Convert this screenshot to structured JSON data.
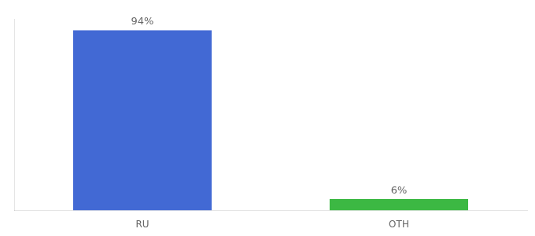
{
  "chart_data": {
    "type": "bar",
    "categories": [
      "RU",
      "OTH"
    ],
    "values": [
      94,
      6
    ],
    "value_labels": [
      "94%",
      "6%"
    ],
    "colors": [
      "#4269d4",
      "#3cb843"
    ],
    "ylim": [
      0,
      100
    ],
    "grid": false,
    "data_labels": true,
    "tick_labels": "x"
  }
}
